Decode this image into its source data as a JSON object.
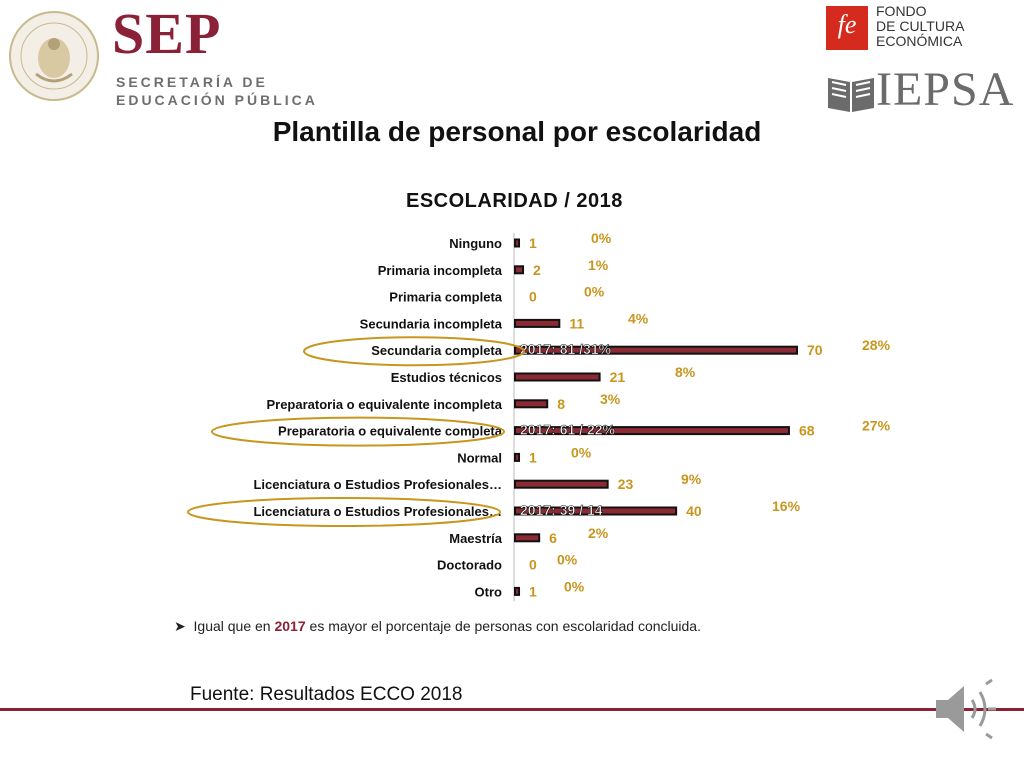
{
  "header": {
    "logo_sep": "SEP",
    "sep_line1": "SECRETARÍA DE",
    "sep_line2": "EDUCACIÓN PÚBLICA",
    "fce_lines": [
      "FONDO",
      "DE CULTURA",
      "ECONÓMICA"
    ],
    "iepsa": "IEPSA"
  },
  "slide_title": "Plantilla de personal por escolaridad",
  "chart_data": {
    "type": "bar",
    "orientation": "horizontal",
    "title": "ESCOLARIDAD / 2018",
    "categories": [
      "Ninguno",
      "Primaria incompleta",
      "Primaria completa",
      "Secundaria incompleta",
      "Secundaria completa",
      "Estudios técnicos",
      "Preparatoria o equivalente incompleta",
      "Preparatoria o equivalente completa",
      "Normal",
      "Licenciatura o Estudios Profesionales…",
      "Licenciatura o Estudios Profesionales…",
      "Maestría",
      "Doctorado",
      "Otro"
    ],
    "values": [
      1,
      2,
      0,
      11,
      70,
      21,
      8,
      68,
      1,
      23,
      40,
      6,
      0,
      1
    ],
    "percent_labels": [
      "0%",
      "1%",
      "0%",
      "4%",
      "28%",
      "8%",
      "3%",
      "27%",
      "0%",
      "9%",
      "16%",
      "2%",
      "0%",
      "0%"
    ],
    "annotations_2017": [
      {
        "category_index": 4,
        "text": "2017: 81 /31%"
      },
      {
        "category_index": 7,
        "text": "2017:  61 / 22%"
      },
      {
        "category_index": 10,
        "text": "2017: 39 / 14"
      }
    ],
    "highlighted_categories": [
      4,
      7,
      10
    ],
    "bar_color": "#8b2a35",
    "label_color": "#c8961e",
    "highlight_color": "#c8961e",
    "xlim": [
      0,
      70
    ],
    "grid": false,
    "legend": "none"
  },
  "note": {
    "prefix": "Igual que en ",
    "year": "2017",
    "suffix": " es mayor el porcentaje de personas con escolaridad concluida."
  },
  "source": "Fuente: Resultados ECCO 2018"
}
